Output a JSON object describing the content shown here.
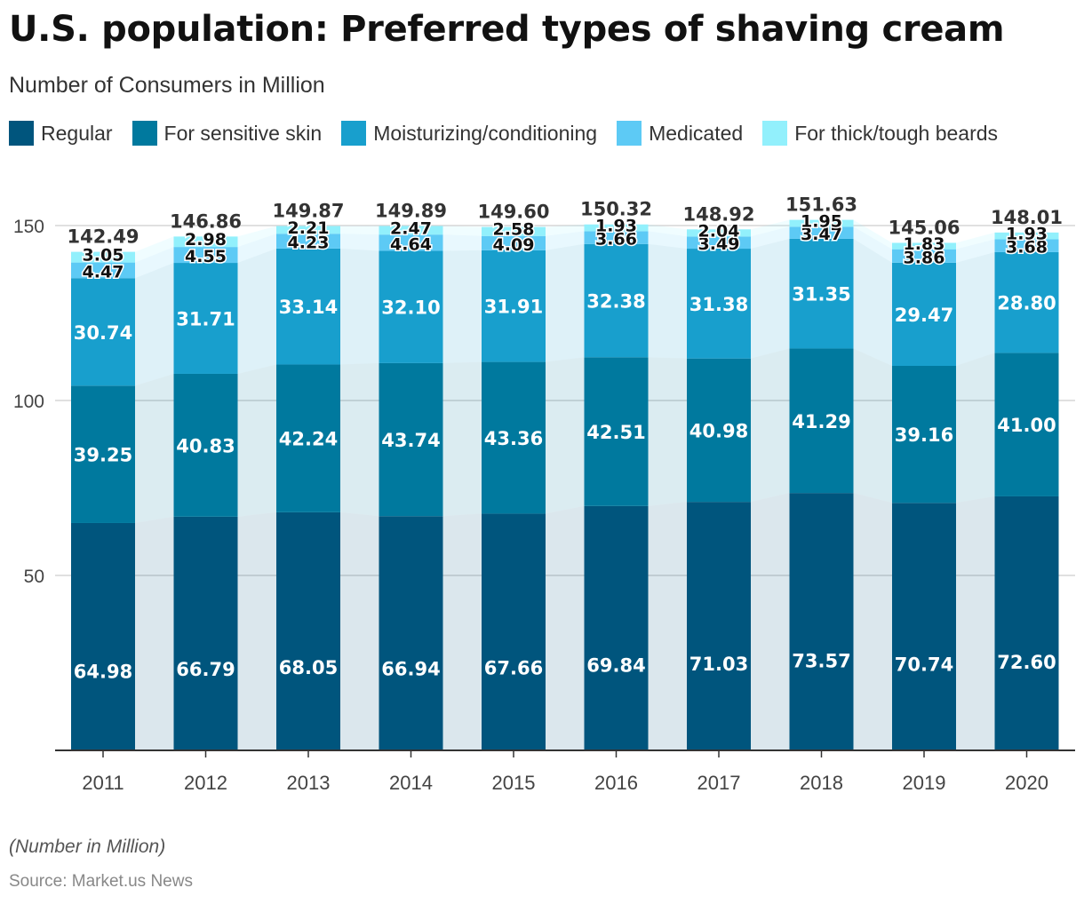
{
  "title": "U.S. population: Preferred types of shaving cream",
  "subtitle": "Number of Consumers in Million",
  "note": "(Number in Million)",
  "source": "Source: Market.us News",
  "chart_data": {
    "type": "bar",
    "stacked": true,
    "categories": [
      "2011",
      "2012",
      "2013",
      "2014",
      "2015",
      "2016",
      "2017",
      "2018",
      "2019",
      "2020"
    ],
    "series": [
      {
        "name": "Regular",
        "color": "#00557d",
        "values": [
          64.98,
          66.79,
          68.05,
          66.94,
          67.66,
          69.84,
          71.03,
          73.57,
          70.74,
          72.6
        ]
      },
      {
        "name": "For sensitive skin",
        "color": "#00799e",
        "values": [
          39.25,
          40.83,
          42.24,
          43.74,
          43.36,
          42.51,
          40.98,
          41.29,
          39.16,
          41.0
        ]
      },
      {
        "name": "Moisturizing/conditioning",
        "color": "#189fcd",
        "values": [
          30.74,
          31.71,
          33.14,
          32.1,
          31.91,
          32.38,
          31.38,
          31.35,
          29.47,
          28.8
        ]
      },
      {
        "name": "Medicated",
        "color": "#5dcaf5",
        "values": [
          4.47,
          4.55,
          4.23,
          4.64,
          4.09,
          3.66,
          3.49,
          3.47,
          3.86,
          3.68
        ]
      },
      {
        "name": "For thick/tough beards",
        "color": "#92f0fc",
        "values": [
          3.05,
          2.98,
          2.21,
          2.47,
          2.58,
          1.93,
          2.04,
          1.95,
          1.83,
          1.93
        ]
      }
    ],
    "value_labels": [
      [
        "64.98",
        "66.79",
        "68.05",
        "66.94",
        "67.66",
        "69.84",
        "71.03",
        "73.57",
        "70.74",
        "72.60"
      ],
      [
        "39.25",
        "40.83",
        "42.24",
        "43.74",
        "43.36",
        "42.51",
        "40.98",
        "41.29",
        "39.16",
        "41.00"
      ],
      [
        "30.74",
        "31.71",
        "33.14",
        "32.10",
        "31.91",
        "32.38",
        "31.38",
        "31.35",
        "29.47",
        "28.80"
      ],
      [
        "4.47",
        "4.55",
        "4.23",
        "4.64",
        "4.09",
        "3.66",
        "3.49",
        "3.47",
        "3.86",
        "3.68"
      ],
      [
        "3.05",
        "2.98",
        "2.21",
        "2.47",
        "2.58",
        "1.93",
        "2.04",
        "1.95",
        "1.83",
        "1.93"
      ]
    ],
    "totals": [
      "142.49",
      "146.86",
      "149.87",
      "149.89",
      "149.60",
      "150.32",
      "148.92",
      "151.63",
      "145.06",
      "148.01"
    ],
    "y_ticks": [
      50,
      100,
      150
    ],
    "ylim": [
      0,
      150
    ],
    "grid": true,
    "legend": "top-left"
  }
}
